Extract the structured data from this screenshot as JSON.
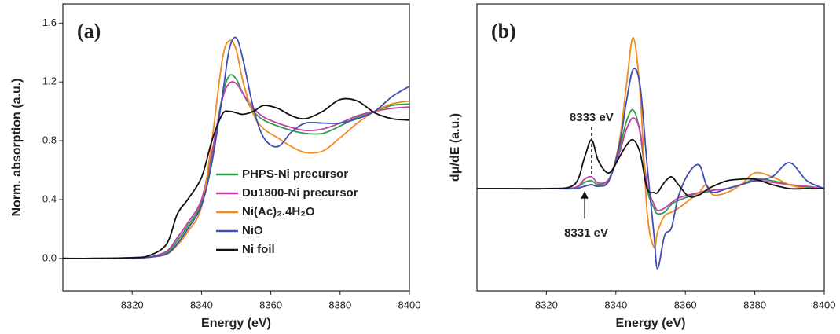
{
  "chart_data": [
    {
      "type": "line",
      "panel_label": "(a)",
      "xlabel": "Energy (eV)",
      "ylabel": "Norm. absorption (a.u.)",
      "xlim": [
        8300,
        8400
      ],
      "xticks": [
        8320,
        8340,
        8360,
        8380,
        8400
      ],
      "ylim": [
        -0.22,
        1.73
      ],
      "yticks": [
        {
          "value": 0,
          "label": "0.0"
        },
        0.4,
        0.8,
        1.2,
        1.6
      ],
      "legend": "lower right",
      "x": [
        8300,
        8310,
        8320,
        8325,
        8330,
        8333,
        8336,
        8340,
        8343,
        8346,
        8348,
        8350,
        8352,
        8355,
        8358,
        8362,
        8366,
        8370,
        8375,
        8380,
        8385,
        8390,
        8395,
        8400
      ],
      "series": [
        {
          "name": "PHPS-Ni precursor",
          "color": "#2e9e48",
          "values": [
            0,
            0,
            0.005,
            0.01,
            0.04,
            0.12,
            0.22,
            0.38,
            0.7,
            1.1,
            1.24,
            1.22,
            1.12,
            1.0,
            0.94,
            0.9,
            0.87,
            0.85,
            0.85,
            0.9,
            0.96,
            1.0,
            1.04,
            1.05
          ]
        },
        {
          "name": "Du1800-Ni precursor",
          "color": "#c43fa8",
          "values": [
            0,
            0,
            0.005,
            0.01,
            0.05,
            0.14,
            0.24,
            0.4,
            0.72,
            1.08,
            1.19,
            1.19,
            1.12,
            1.02,
            0.96,
            0.92,
            0.89,
            0.87,
            0.88,
            0.92,
            0.97,
            1.0,
            1.02,
            1.03
          ]
        },
        {
          "name": "Ni(Ac)₂.4H₂O",
          "color": "#f28a1c",
          "values": [
            0,
            0,
            0.003,
            0.008,
            0.03,
            0.09,
            0.18,
            0.35,
            0.8,
            1.35,
            1.48,
            1.42,
            1.2,
            0.98,
            0.88,
            0.82,
            0.76,
            0.72,
            0.73,
            0.82,
            0.92,
            1.0,
            1.05,
            1.07
          ]
        },
        {
          "name": "NiO",
          "color": "#3f4fb0",
          "values": [
            0,
            0,
            0.003,
            0.008,
            0.03,
            0.1,
            0.2,
            0.36,
            0.65,
            1.1,
            1.42,
            1.5,
            1.35,
            1.02,
            0.82,
            0.76,
            0.86,
            0.92,
            0.92,
            0.92,
            0.95,
            1.0,
            1.1,
            1.17
          ]
        },
        {
          "name": "Ni foil",
          "color": "#111111",
          "values": [
            0,
            0,
            0.005,
            0.02,
            0.1,
            0.3,
            0.4,
            0.55,
            0.8,
            0.98,
            1.0,
            0.99,
            0.98,
            1.0,
            1.04,
            1.02,
            0.97,
            0.95,
            1.0,
            1.08,
            1.07,
            0.99,
            0.95,
            0.94
          ]
        }
      ]
    },
    {
      "type": "line",
      "panel_label": "(b)",
      "xlabel": "Energy (eV)",
      "ylabel": "dμ/dE (a.u.)",
      "xlim": [
        8300,
        8400
      ],
      "xticks": [
        8320,
        8340,
        8360,
        8380,
        8400
      ],
      "ylim": [
        -1.3,
        2.35
      ],
      "annotations": [
        {
          "text": "8333 eV",
          "x": 8333
        },
        {
          "text": "8331 eV",
          "x": 8331
        }
      ],
      "x": [
        8300,
        8310,
        8320,
        8328,
        8331,
        8333,
        8335,
        8338,
        8341,
        8343,
        8345,
        8347,
        8349,
        8351,
        8352,
        8354,
        8356,
        8358,
        8361,
        8364,
        8366,
        8368,
        8372,
        8376,
        8380,
        8385,
        8390,
        8395,
        8400
      ],
      "series": [
        {
          "name": "PHPS-Ni precursor",
          "color": "#2e9e48",
          "values": [
            0,
            0,
            0,
            0.01,
            0.08,
            0.1,
            0.05,
            0.12,
            0.5,
            0.85,
            1.0,
            0.7,
            0.0,
            -0.25,
            -0.32,
            -0.3,
            -0.2,
            -0.15,
            -0.1,
            -0.05,
            -0.05,
            -0.02,
            0.0,
            0.05,
            0.12,
            0.1,
            0.05,
            0.02,
            0.0
          ]
        },
        {
          "name": "Du1800-Ni precursor",
          "color": "#c43fa8",
          "values": [
            0,
            0,
            0,
            0.01,
            0.12,
            0.15,
            0.07,
            0.12,
            0.45,
            0.75,
            0.9,
            0.72,
            0.05,
            -0.2,
            -0.28,
            -0.25,
            -0.18,
            -0.12,
            -0.08,
            -0.05,
            -0.03,
            -0.02,
            0.0,
            0.05,
            0.1,
            0.08,
            0.05,
            0.03,
            0.0
          ]
        },
        {
          "name": "Ni(Ac)₂.4H₂O",
          "color": "#f28a1c",
          "values": [
            0,
            0,
            0,
            0.0,
            0.03,
            0.05,
            0.03,
            0.1,
            0.6,
            1.3,
            1.92,
            1.2,
            -0.3,
            -0.75,
            -0.55,
            -0.35,
            -0.3,
            -0.25,
            -0.15,
            -0.05,
            0.05,
            -0.08,
            -0.05,
            0.05,
            0.2,
            0.15,
            0.05,
            0.0,
            0.0
          ]
        },
        {
          "name": "NiO",
          "color": "#3f4fb0",
          "values": [
            0,
            0,
            0,
            0.0,
            0.03,
            0.05,
            0.03,
            0.1,
            0.55,
            1.1,
            1.52,
            1.3,
            0.3,
            -0.6,
            -1.02,
            -0.6,
            -0.5,
            -0.1,
            0.2,
            0.3,
            0.05,
            -0.05,
            0.0,
            0.05,
            0.1,
            0.15,
            0.33,
            0.1,
            0.0
          ]
        },
        {
          "name": "Ni foil",
          "color": "#111111",
          "values": [
            0,
            0,
            0,
            0.05,
            0.4,
            0.62,
            0.35,
            0.2,
            0.4,
            0.55,
            0.62,
            0.45,
            0.0,
            -0.05,
            -0.05,
            0.08,
            0.15,
            0.05,
            -0.1,
            -0.08,
            -0.02,
            0.03,
            0.1,
            0.12,
            0.12,
            0.05,
            0.0,
            0.0,
            0.0
          ]
        }
      ]
    }
  ]
}
